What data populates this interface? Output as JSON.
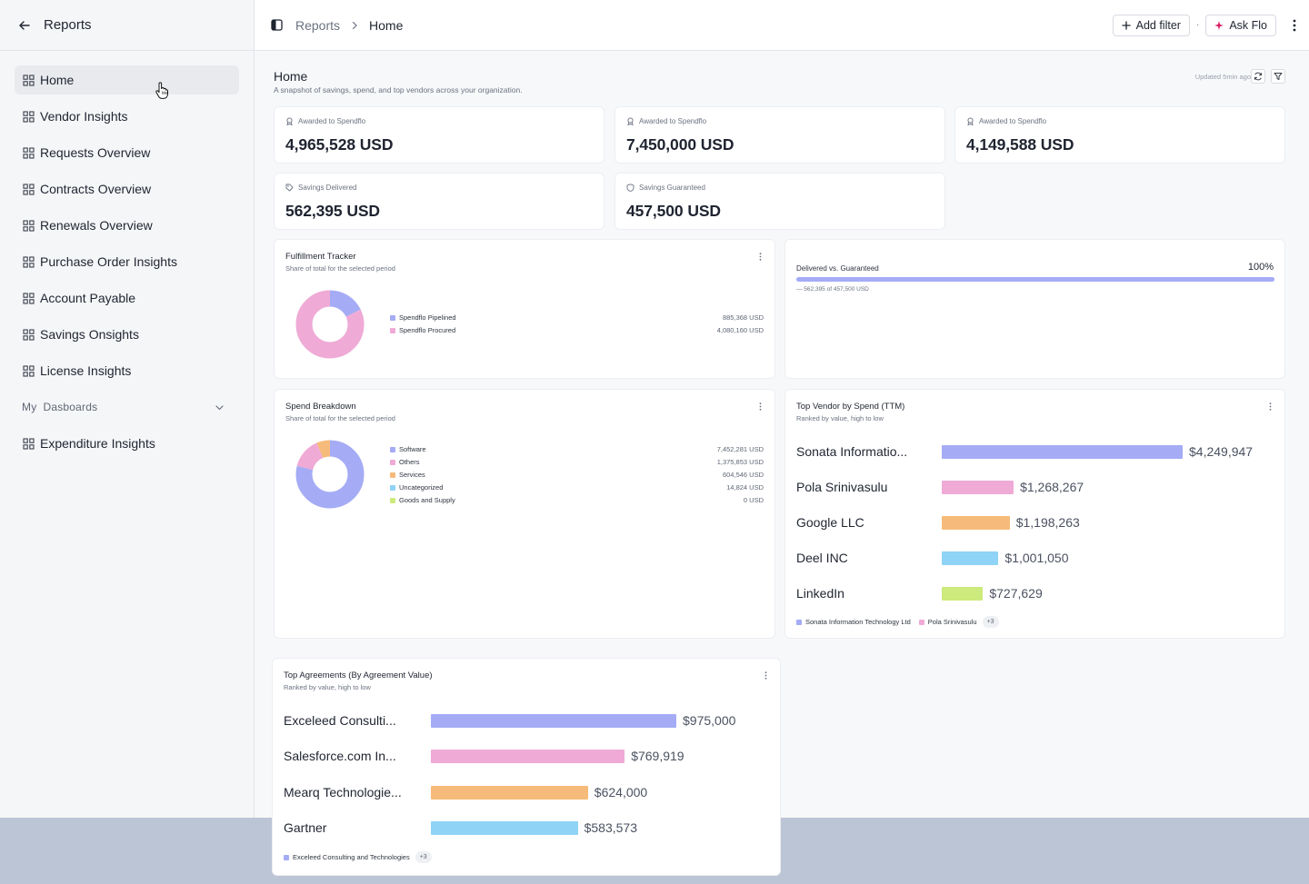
{
  "sidebar": {
    "title": "Reports",
    "items": [
      {
        "label": "Home",
        "active": true
      },
      {
        "label": "Vendor Insights"
      },
      {
        "label": "Requests Overview"
      },
      {
        "label": "Contracts Overview"
      },
      {
        "label": "Renewals Overview"
      },
      {
        "label": "Purchase Order Insights"
      },
      {
        "label": "Account Payable"
      },
      {
        "label": "Savings Onsights"
      },
      {
        "label": "License Insights"
      }
    ],
    "section_label": "My  Dasboards",
    "dashboard_items": [
      {
        "label": "Expenditure Insights"
      }
    ]
  },
  "topbar": {
    "breadcrumb_root": "Reports",
    "breadcrumb_current": "Home",
    "add_filter_label": "Add filter",
    "ask_flo_label": "Ask Flo",
    "separator": "·"
  },
  "page": {
    "title": "Home",
    "subtitle": "A snapshot of savings, spend, and top vendors across your organization.",
    "updated": "Updated 5min ago"
  },
  "stats": [
    {
      "label": "Awarded to Spendflo",
      "value": "4,965,528 USD",
      "icon": "award-icon"
    },
    {
      "label": "Awarded to Spendflo",
      "value": "7,450,000 USD",
      "icon": "award-icon"
    },
    {
      "label": "Awarded to Spendflo",
      "value": "4,149,588 USD",
      "icon": "award-icon"
    },
    {
      "label": "Savings Delivered",
      "value": "562,395 USD",
      "icon": "tag-icon"
    },
    {
      "label": "Savings Guaranteed",
      "value": "457,500 USD",
      "icon": "shield-icon"
    }
  ],
  "fulfillment": {
    "title": "Fulfillment Tracker",
    "subtitle": "Share of total for the selected period",
    "legend": [
      {
        "name": "Spendflo Pipelined",
        "value_label": "885,368 USD",
        "color": "#a5acf5"
      },
      {
        "name": "Spendflo Procured",
        "value_label": "4,080,160 USD",
        "color": "#efaad6"
      }
    ]
  },
  "delivered": {
    "label": "Delivered vs. Guaranteed",
    "percent_label": "100%",
    "fill_fraction": 1.0,
    "detail": "— 562,395 of 457,500 USD"
  },
  "spend": {
    "title": "Spend Breakdown",
    "subtitle": "Share of total for the selected period",
    "legend": [
      {
        "name": "Software",
        "value_label": "7,452,281 USD",
        "color": "#a5acf5"
      },
      {
        "name": "Others",
        "value_label": "1,375,853 USD",
        "color": "#efaad6"
      },
      {
        "name": "Services",
        "value_label": "604,546 USD",
        "color": "#f6bb7a"
      },
      {
        "name": "Uncategorized",
        "value_label": "14,824 USD",
        "color": "#8fd3f6"
      },
      {
        "name": "Goods and Supply",
        "value_label": "0 USD",
        "color": "#cdea7c"
      }
    ]
  },
  "top_vendor": {
    "title": "Top Vendor by Spend (TTM)",
    "subtitle": "Ranked by value, high to low",
    "legend_items": [
      "Sonata Information Technology Ltd",
      "Pola Srinivasulu"
    ],
    "legend_chip": "+3"
  },
  "top_agreements": {
    "title": "Top Agreements (By Agreement Value)",
    "subtitle": "Ranked by value, high to low",
    "legend_items": [
      "Exceleed Consulting and Technologies"
    ],
    "legend_chip": "+3"
  },
  "chart_data": [
    {
      "type": "pie",
      "categories": [
        "Spendflo Pipelined",
        "Spendflo Procured"
      ],
      "values": [
        885368,
        4080160
      ],
      "colors": [
        "#a5acf5",
        "#efaad6"
      ]
    },
    {
      "type": "pie",
      "categories": [
        "Software",
        "Others",
        "Services",
        "Uncategorized",
        "Goods and Supply"
      ],
      "values": [
        7452281,
        1375853,
        604546,
        14824,
        0
      ],
      "colors": [
        "#a5acf5",
        "#efaad6",
        "#f6bb7a",
        "#8fd3f6",
        "#cdea7c"
      ]
    },
    {
      "type": "bar",
      "orientation": "horizontal",
      "categories": [
        "Sonata Informatio...",
        "Pola Srinivasulu",
        "Google LLC",
        "Deel INC",
        "LinkedIn"
      ],
      "values": [
        4249947,
        1268267,
        1198263,
        1001050,
        727629
      ],
      "value_labels": [
        "$4,249,947",
        "$1,268,267",
        "$1,198,263",
        "$1,001,050",
        "$727,629"
      ],
      "colors": [
        "#a5acf5",
        "#efaad6",
        "#f6bb7a",
        "#8fd3f6",
        "#cdea7c"
      ]
    },
    {
      "type": "bar",
      "orientation": "horizontal",
      "categories": [
        "Exceleed Consulti...",
        "Salesforce.com In...",
        "Mearq Technologie...",
        "Gartner"
      ],
      "values": [
        975000,
        769919,
        624000,
        583573
      ],
      "value_labels": [
        "$975,000",
        "$769,919",
        "$624,000",
        "$583,573"
      ],
      "colors": [
        "#a5acf5",
        "#efaad6",
        "#f6bb7a",
        "#8fd3f6"
      ]
    }
  ]
}
